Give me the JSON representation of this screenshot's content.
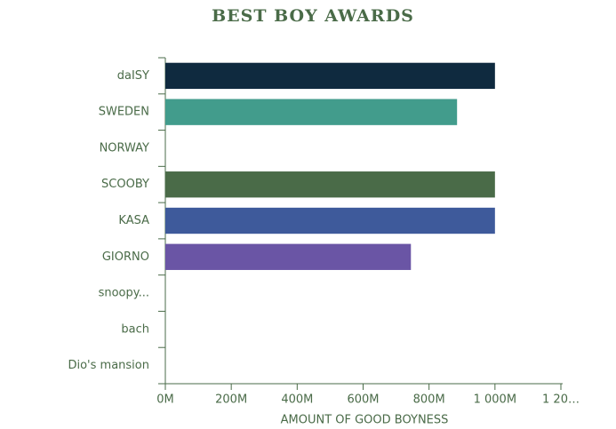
{
  "chart_data": {
    "type": "bar",
    "orientation": "horizontal",
    "title": "BEST BOY AWARDS",
    "x_label": "AMOUNT OF GOOD BOYNESS",
    "categories": [
      "daISY",
      "SWEDEN",
      "NORWAY",
      "SCOOBY",
      "KASA",
      "GIORNO",
      "snoopy...",
      "bach",
      "Dio's mansion"
    ],
    "values": [
      1000000000,
      885000000,
      null,
      1000000000,
      1000000000,
      745000000,
      null,
      null,
      null
    ],
    "colors": [
      "#0f2a3f",
      "#429c8c",
      null,
      "#4a6b48",
      "#3e5a9b",
      "#6a55a5",
      null,
      null,
      null
    ],
    "xlim": [
      0,
      1200000000
    ],
    "xticks": [
      {
        "value": 0,
        "label": "0M"
      },
      {
        "value": 200000000,
        "label": "200M"
      },
      {
        "value": 400000000,
        "label": "400M"
      },
      {
        "value": 600000000,
        "label": "600M"
      },
      {
        "value": 800000000,
        "label": "800M"
      },
      {
        "value": 1000000000,
        "label": "1 000M"
      },
      {
        "value": 1200000000,
        "label": "1 20…"
      }
    ],
    "grid": false
  }
}
